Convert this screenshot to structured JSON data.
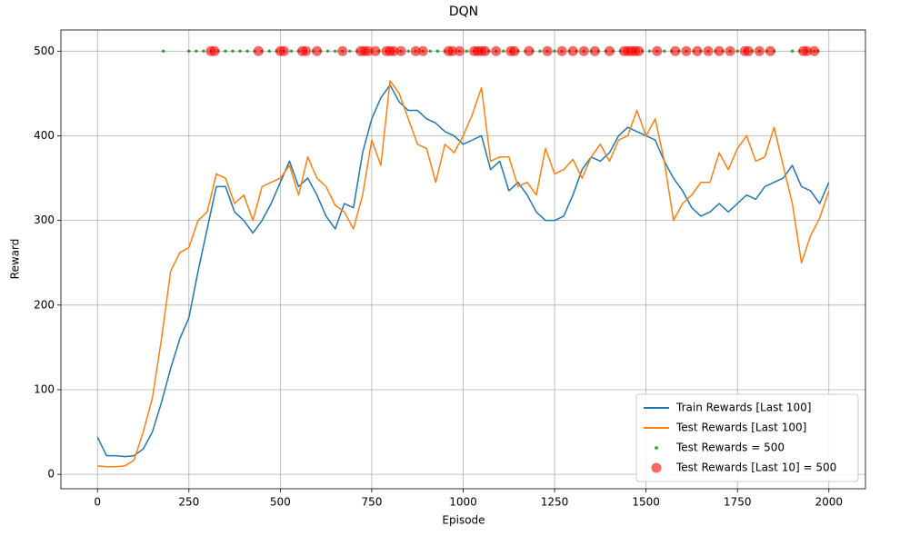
{
  "chart_data": {
    "type": "line",
    "title": "DQN",
    "x_label": "Episode",
    "y_label": "Reward",
    "xlim": [
      -100,
      2100
    ],
    "ylim": [
      -17,
      525
    ],
    "xticks": [
      0,
      250,
      500,
      750,
      1000,
      1250,
      1500,
      1750,
      2000
    ],
    "yticks": [
      0,
      100,
      200,
      300,
      400,
      500
    ],
    "grid": true,
    "legend": "lower right",
    "series": [
      {
        "name": "Train Rewards [Last 100]",
        "color": "#1f77b4",
        "type": "line",
        "x": [
          0,
          25,
          50,
          75,
          100,
          125,
          150,
          175,
          200,
          225,
          250,
          275,
          300,
          325,
          350,
          375,
          400,
          425,
          450,
          475,
          500,
          525,
          550,
          575,
          600,
          625,
          650,
          675,
          700,
          725,
          750,
          775,
          800,
          825,
          850,
          875,
          900,
          925,
          950,
          975,
          1000,
          1025,
          1050,
          1075,
          1100,
          1125,
          1150,
          1175,
          1200,
          1225,
          1250,
          1275,
          1300,
          1325,
          1350,
          1375,
          1400,
          1425,
          1450,
          1475,
          1500,
          1525,
          1550,
          1575,
          1600,
          1625,
          1650,
          1675,
          1700,
          1725,
          1750,
          1775,
          1800,
          1825,
          1850,
          1875,
          1900,
          1925,
          1950,
          1975,
          2000
        ],
        "values": [
          44,
          22,
          22,
          21,
          22,
          30,
          50,
          85,
          125,
          160,
          185,
          240,
          290,
          340,
          340,
          310,
          300,
          285,
          300,
          320,
          345,
          370,
          340,
          350,
          330,
          305,
          290,
          320,
          315,
          380,
          420,
          445,
          460,
          440,
          430,
          430,
          420,
          415,
          405,
          400,
          390,
          395,
          400,
          360,
          370,
          335,
          345,
          330,
          310,
          300,
          300,
          305,
          330,
          360,
          375,
          370,
          380,
          400,
          410,
          405,
          400,
          395,
          370,
          350,
          335,
          315,
          305,
          310,
          320,
          310,
          320,
          330,
          325,
          340,
          345,
          350,
          365,
          340,
          335,
          320,
          345
        ]
      },
      {
        "name": "Test Rewards [Last 100]",
        "color": "#ff7f0e",
        "type": "line",
        "x": [
          0,
          25,
          50,
          75,
          100,
          125,
          150,
          175,
          200,
          225,
          250,
          275,
          300,
          325,
          350,
          375,
          400,
          425,
          450,
          475,
          500,
          525,
          550,
          575,
          600,
          625,
          650,
          675,
          700,
          725,
          750,
          775,
          800,
          825,
          850,
          875,
          900,
          925,
          950,
          975,
          1000,
          1025,
          1050,
          1075,
          1100,
          1125,
          1150,
          1175,
          1200,
          1225,
          1250,
          1275,
          1300,
          1325,
          1350,
          1375,
          1400,
          1425,
          1450,
          1475,
          1500,
          1525,
          1550,
          1575,
          1600,
          1625,
          1650,
          1675,
          1700,
          1725,
          1750,
          1775,
          1800,
          1825,
          1850,
          1875,
          1900,
          1925,
          1950,
          1975,
          2000
        ],
        "values": [
          10,
          9,
          9,
          10,
          17,
          50,
          90,
          160,
          240,
          262,
          268,
          300,
          310,
          355,
          350,
          320,
          330,
          300,
          340,
          345,
          350,
          365,
          330,
          375,
          350,
          340,
          318,
          310,
          290,
          330,
          395,
          365,
          465,
          450,
          420,
          390,
          385,
          345,
          390,
          380,
          400,
          425,
          457,
          370,
          375,
          375,
          340,
          345,
          330,
          385,
          355,
          360,
          372,
          350,
          375,
          390,
          370,
          395,
          400,
          430,
          400,
          420,
          370,
          300,
          320,
          330,
          345,
          345,
          380,
          360,
          385,
          400,
          370,
          375,
          410,
          365,
          320,
          250,
          282,
          303,
          335
        ]
      },
      {
        "name": "Test Rewards = 500",
        "color": "green",
        "type": "scatter",
        "x": [
          180,
          250,
          270,
          290,
          310,
          330,
          350,
          370,
          390,
          410,
          430,
          450,
          470,
          490,
          510,
          530,
          550,
          570,
          590,
          610,
          630,
          650,
          670,
          690,
          710,
          730,
          750,
          770,
          790,
          810,
          830,
          850,
          870,
          890,
          910,
          930,
          950,
          970,
          990,
          1010,
          1030,
          1050,
          1070,
          1090,
          1110,
          1130,
          1150,
          1170,
          1190,
          1210,
          1230,
          1250,
          1270,
          1290,
          1310,
          1330,
          1350,
          1370,
          1390,
          1410,
          1430,
          1450,
          1470,
          1490,
          1510,
          1530,
          1550,
          1570,
          1590,
          1610,
          1630,
          1650,
          1670,
          1690,
          1710,
          1730,
          1750,
          1770,
          1790,
          1810,
          1830,
          1850,
          1900,
          1920,
          1940,
          1960,
          1970
        ],
        "values": [
          500,
          500,
          500,
          500,
          500,
          500,
          500,
          500,
          500,
          500,
          500,
          500,
          500,
          500,
          500,
          500,
          500,
          500,
          500,
          500,
          500,
          500,
          500,
          500,
          500,
          500,
          500,
          500,
          500,
          500,
          500,
          500,
          500,
          500,
          500,
          500,
          500,
          500,
          500,
          500,
          500,
          500,
          500,
          500,
          500,
          500,
          500,
          500,
          500,
          500,
          500,
          500,
          500,
          500,
          500,
          500,
          500,
          500,
          500,
          500,
          500,
          500,
          500,
          500,
          500,
          500,
          500,
          500,
          500,
          500,
          500,
          500,
          500,
          500,
          500,
          500,
          500,
          500,
          500,
          500,
          500,
          500,
          500,
          500,
          500,
          500,
          500
        ]
      },
      {
        "name": "Test Rewards [Last 10] = 500",
        "color": "red",
        "type": "scatter",
        "x": [
          310,
          320,
          440,
          500,
          510,
          560,
          570,
          600,
          670,
          720,
          730,
          740,
          760,
          790,
          800,
          810,
          830,
          870,
          890,
          960,
          970,
          990,
          1030,
          1040,
          1050,
          1060,
          1090,
          1130,
          1140,
          1180,
          1230,
          1270,
          1300,
          1330,
          1360,
          1400,
          1440,
          1450,
          1460,
          1470,
          1480,
          1530,
          1580,
          1610,
          1640,
          1670,
          1700,
          1730,
          1770,
          1780,
          1810,
          1840,
          1930,
          1940,
          1960
        ],
        "values": [
          500,
          500,
          500,
          500,
          500,
          500,
          500,
          500,
          500,
          500,
          500,
          500,
          500,
          500,
          500,
          500,
          500,
          500,
          500,
          500,
          500,
          500,
          500,
          500,
          500,
          500,
          500,
          500,
          500,
          500,
          500,
          500,
          500,
          500,
          500,
          500,
          500,
          500,
          500,
          500,
          500,
          500,
          500,
          500,
          500,
          500,
          500,
          500,
          500,
          500,
          500,
          500,
          500,
          500,
          500
        ]
      }
    ]
  }
}
